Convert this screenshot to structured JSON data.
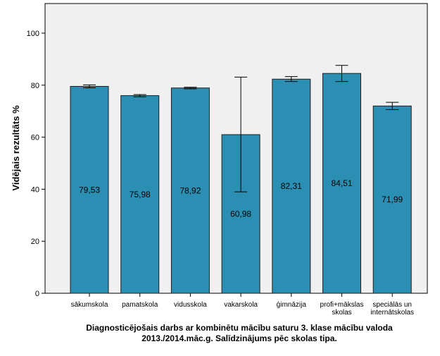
{
  "chart_data": {
    "type": "bar",
    "ylabel": "Vidējais rezultāts %",
    "xlabel_lines": [
      "Diagnosticējošais darbs ar kombinētu mācību saturu 3. klase mācību valoda",
      "2013./2014.māc.g. Salīdzinājums pēc skolas tipa."
    ],
    "ylim": [
      0,
      110
    ],
    "yticks": [
      0,
      20,
      40,
      60,
      80,
      100
    ],
    "categories": [
      [
        "sākumskola"
      ],
      [
        "pamatskola"
      ],
      [
        "vidusskola"
      ],
      [
        "vakarskola"
      ],
      [
        "ģimnāzija"
      ],
      [
        "profi+mākslas",
        "skolas"
      ],
      [
        "speciālās un",
        "internātskolas"
      ]
    ],
    "values": [
      79.53,
      75.98,
      78.92,
      60.98,
      82.31,
      84.51,
      71.99
    ],
    "value_labels": [
      "79,53",
      "75,98",
      "78,92",
      "60,98",
      "82,31",
      "84,51",
      "71,99"
    ],
    "error_low": [
      79.0,
      75.5,
      78.6,
      39.0,
      81.4,
      81.4,
      70.6
    ],
    "error_high": [
      80.1,
      76.4,
      79.2,
      83.1,
      83.3,
      87.6,
      73.4
    ],
    "grid": false,
    "colors": {
      "bar_fill": "#2a8fb3",
      "bar_stroke": "#1f1f1f",
      "plot_bg": "#f0f0f0",
      "axis": "#000000"
    }
  }
}
